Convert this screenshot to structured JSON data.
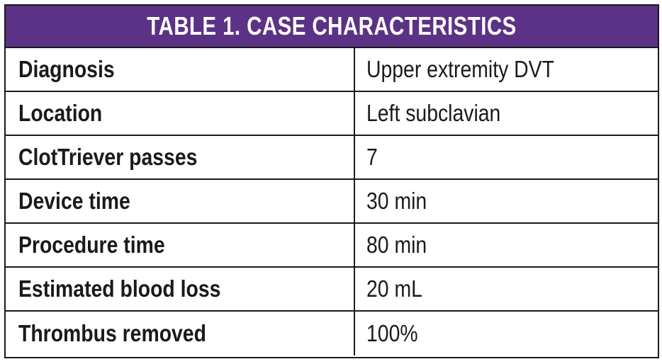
{
  "table": {
    "title": "TABLE 1.  CASE CHARACTERISTICS",
    "header_color": "#5b3285",
    "rows": [
      {
        "label": "Diagnosis",
        "value": "Upper extremity DVT"
      },
      {
        "label": "Location",
        "value": "Left subclavian"
      },
      {
        "label": "ClotTriever passes",
        "value": "7"
      },
      {
        "label": "Device time",
        "value": "30 min"
      },
      {
        "label": "Procedure time",
        "value": "80 min"
      },
      {
        "label": "Estimated blood loss",
        "value": "20 mL"
      },
      {
        "label": "Thrombus removed",
        "value": "100%"
      }
    ]
  }
}
